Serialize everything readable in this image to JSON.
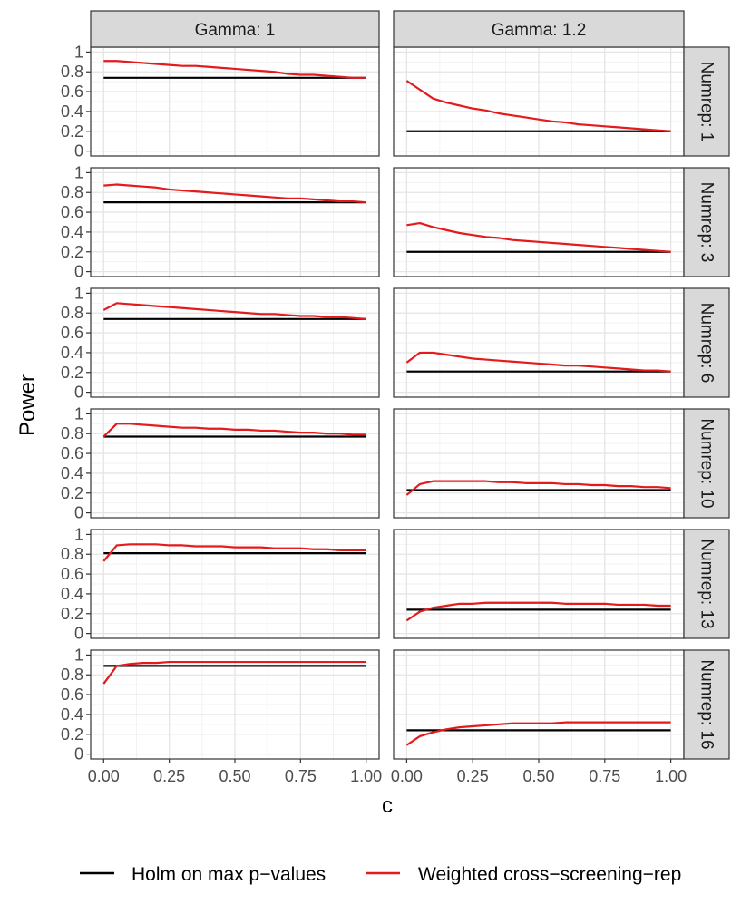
{
  "chart_data": {
    "type": "line",
    "xlabel": "c",
    "ylabel": "Power",
    "xlim": [
      0,
      1
    ],
    "ylim": [
      0,
      1
    ],
    "x_ticks": [
      0,
      0.25,
      0.5,
      0.75,
      1
    ],
    "x_tick_labels": [
      "0.00",
      "0.25",
      "0.50",
      "0.75",
      "1.00"
    ],
    "y_ticks": [
      0,
      0.2,
      0.4,
      0.6,
      0.8,
      1
    ],
    "y_tick_labels": [
      "0",
      "0.2",
      "0.4",
      "0.6",
      "0.8",
      "1"
    ],
    "grid": true,
    "legend_position": "bottom",
    "legend": [
      {
        "label": "Holm on max p−values",
        "color": "#000000"
      },
      {
        "label": "Weighted cross−screening−rep",
        "color": "#e41a1c"
      }
    ],
    "columns": [
      "Gamma: 1",
      "Gamma: 1.2"
    ],
    "rows": [
      "Numrep: 1",
      "Numrep: 3",
      "Numrep: 6",
      "Numrep: 10",
      "Numrep: 13",
      "Numrep: 16"
    ],
    "x": [
      0,
      0.05,
      0.1,
      0.15,
      0.2,
      0.25,
      0.3,
      0.35,
      0.4,
      0.45,
      0.5,
      0.55,
      0.6,
      0.65,
      0.7,
      0.75,
      0.8,
      0.85,
      0.9,
      0.95,
      1.0
    ],
    "panels": [
      {
        "column": "Gamma: 1",
        "row": "Numrep: 1",
        "holm": 0.74,
        "weighted": [
          0.91,
          0.91,
          0.9,
          0.89,
          0.88,
          0.87,
          0.86,
          0.86,
          0.85,
          0.84,
          0.83,
          0.82,
          0.81,
          0.8,
          0.78,
          0.77,
          0.77,
          0.76,
          0.75,
          0.74,
          0.74
        ]
      },
      {
        "column": "Gamma: 1.2",
        "row": "Numrep: 1",
        "holm": 0.2,
        "weighted": [
          0.71,
          0.62,
          0.53,
          0.49,
          0.46,
          0.43,
          0.41,
          0.38,
          0.36,
          0.34,
          0.32,
          0.3,
          0.29,
          0.27,
          0.26,
          0.25,
          0.24,
          0.23,
          0.22,
          0.21,
          0.2
        ]
      },
      {
        "column": "Gamma: 1",
        "row": "Numrep: 3",
        "holm": 0.7,
        "weighted": [
          0.87,
          0.88,
          0.87,
          0.86,
          0.85,
          0.83,
          0.82,
          0.81,
          0.8,
          0.79,
          0.78,
          0.77,
          0.76,
          0.75,
          0.74,
          0.74,
          0.73,
          0.72,
          0.71,
          0.71,
          0.7
        ]
      },
      {
        "column": "Gamma: 1.2",
        "row": "Numrep: 3",
        "holm": 0.2,
        "weighted": [
          0.47,
          0.49,
          0.45,
          0.42,
          0.39,
          0.37,
          0.35,
          0.34,
          0.32,
          0.31,
          0.3,
          0.29,
          0.28,
          0.27,
          0.26,
          0.25,
          0.24,
          0.23,
          0.22,
          0.21,
          0.2
        ]
      },
      {
        "column": "Gamma: 1",
        "row": "Numrep: 6",
        "holm": 0.74,
        "weighted": [
          0.83,
          0.9,
          0.89,
          0.88,
          0.87,
          0.86,
          0.85,
          0.84,
          0.83,
          0.82,
          0.81,
          0.8,
          0.79,
          0.79,
          0.78,
          0.77,
          0.77,
          0.76,
          0.76,
          0.75,
          0.74
        ]
      },
      {
        "column": "Gamma: 1.2",
        "row": "Numrep: 6",
        "holm": 0.21,
        "weighted": [
          0.3,
          0.4,
          0.4,
          0.38,
          0.36,
          0.34,
          0.33,
          0.32,
          0.31,
          0.3,
          0.29,
          0.28,
          0.27,
          0.27,
          0.26,
          0.25,
          0.24,
          0.23,
          0.22,
          0.22,
          0.21
        ]
      },
      {
        "column": "Gamma: 1",
        "row": "Numrep: 10",
        "holm": 0.77,
        "weighted": [
          0.77,
          0.9,
          0.9,
          0.89,
          0.88,
          0.87,
          0.86,
          0.86,
          0.85,
          0.85,
          0.84,
          0.84,
          0.83,
          0.83,
          0.82,
          0.81,
          0.81,
          0.8,
          0.8,
          0.79,
          0.79
        ]
      },
      {
        "column": "Gamma: 1.2",
        "row": "Numrep: 10",
        "holm": 0.23,
        "weighted": [
          0.18,
          0.29,
          0.32,
          0.32,
          0.32,
          0.32,
          0.32,
          0.31,
          0.31,
          0.3,
          0.3,
          0.3,
          0.29,
          0.29,
          0.28,
          0.28,
          0.27,
          0.27,
          0.26,
          0.26,
          0.25
        ]
      },
      {
        "column": "Gamma: 1",
        "row": "Numrep: 13",
        "holm": 0.81,
        "weighted": [
          0.73,
          0.89,
          0.9,
          0.9,
          0.9,
          0.89,
          0.89,
          0.88,
          0.88,
          0.88,
          0.87,
          0.87,
          0.87,
          0.86,
          0.86,
          0.86,
          0.85,
          0.85,
          0.84,
          0.84,
          0.84
        ]
      },
      {
        "column": "Gamma: 1.2",
        "row": "Numrep: 13",
        "holm": 0.24,
        "weighted": [
          0.13,
          0.22,
          0.26,
          0.28,
          0.3,
          0.3,
          0.31,
          0.31,
          0.31,
          0.31,
          0.31,
          0.31,
          0.3,
          0.3,
          0.3,
          0.3,
          0.29,
          0.29,
          0.29,
          0.28,
          0.28
        ]
      },
      {
        "column": "Gamma: 1",
        "row": "Numrep: 16",
        "holm": 0.89,
        "weighted": [
          0.71,
          0.89,
          0.91,
          0.92,
          0.92,
          0.93,
          0.93,
          0.93,
          0.93,
          0.93,
          0.93,
          0.93,
          0.93,
          0.93,
          0.93,
          0.93,
          0.93,
          0.93,
          0.93,
          0.93,
          0.93
        ]
      },
      {
        "column": "Gamma: 1.2",
        "row": "Numrep: 16",
        "holm": 0.24,
        "weighted": [
          0.09,
          0.18,
          0.22,
          0.25,
          0.27,
          0.28,
          0.29,
          0.3,
          0.31,
          0.31,
          0.31,
          0.31,
          0.32,
          0.32,
          0.32,
          0.32,
          0.32,
          0.32,
          0.32,
          0.32,
          0.32
        ]
      }
    ]
  }
}
